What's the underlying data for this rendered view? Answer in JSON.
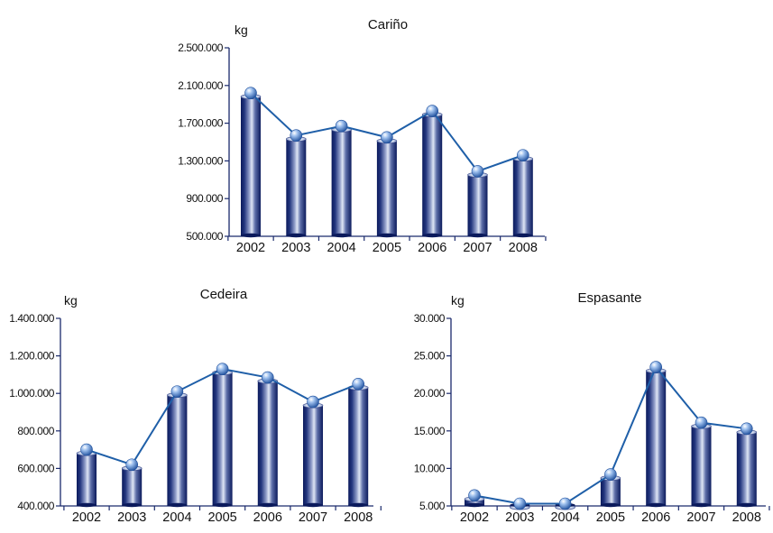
{
  "chart_data": [
    {
      "type": "bar",
      "title": "Cariño",
      "ylabel": "kg",
      "ylim": [
        500000,
        2500000
      ],
      "yticks": [
        500000,
        900000,
        1300000,
        1700000,
        2100000,
        2500000
      ],
      "ytick_labels": [
        "500.000",
        "900.000",
        "1.300.000",
        "1.700.000",
        "2.100.000",
        "2.500.000"
      ],
      "categories": [
        "2002",
        "2003",
        "2004",
        "2005",
        "2006",
        "2007",
        "2008"
      ],
      "values": [
        2020000,
        1570000,
        1670000,
        1550000,
        1830000,
        1190000,
        1360000
      ],
      "overlay": "line-with-markers"
    },
    {
      "type": "bar",
      "title": "Cedeira",
      "ylabel": "kg",
      "ylim": [
        400000,
        1400000
      ],
      "yticks": [
        400000,
        600000,
        800000,
        1000000,
        1200000,
        1400000
      ],
      "ytick_labels": [
        "400.000",
        "600.000",
        "800.000",
        "1.000.000",
        "1.200.000",
        "1.400.000"
      ],
      "categories": [
        "2002",
        "2003",
        "2004",
        "2005",
        "2006",
        "2007",
        "2008"
      ],
      "values": [
        700000,
        620000,
        1010000,
        1130000,
        1085000,
        955000,
        1050000
      ],
      "overlay": "line-with-markers"
    },
    {
      "type": "bar",
      "title": "Espasante",
      "ylabel": "kg",
      "ylim": [
        5000,
        30000
      ],
      "yticks": [
        5000,
        10000,
        15000,
        20000,
        25000,
        30000
      ],
      "ytick_labels": [
        "5.000",
        "10.000",
        "15.000",
        "20.000",
        "25.000",
        "30.000"
      ],
      "categories": [
        "2002",
        "2003",
        "2004",
        "2005",
        "2006",
        "2007",
        "2008"
      ],
      "values": [
        6400,
        5300,
        5300,
        9200,
        23500,
        16100,
        15300
      ],
      "overlay": "line-with-markers"
    }
  ],
  "colors": {
    "bar_dark": "#0b1a5c",
    "bar_light": "#dfe6f5",
    "line": "#1f5fa8",
    "marker": "#5b8fd6",
    "axis": "#1a2a6c"
  }
}
